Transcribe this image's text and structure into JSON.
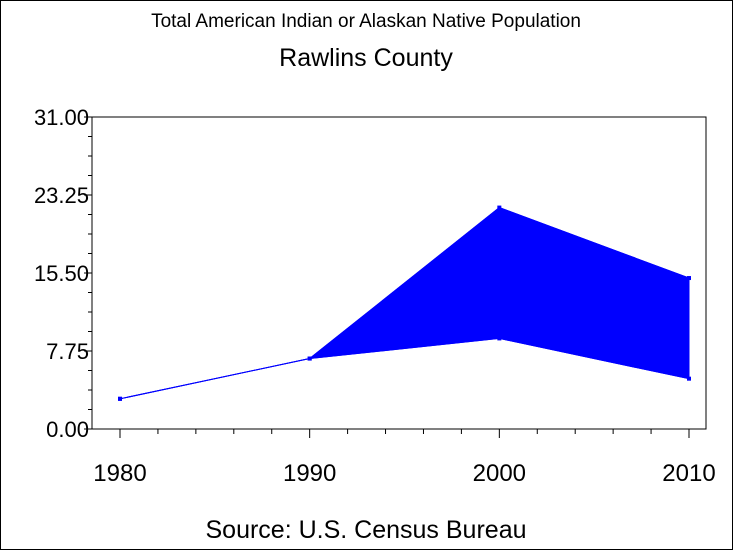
{
  "chart_data": {
    "type": "area",
    "title": "Total American Indian or Alaskan Native Population",
    "subtitle": "Rawlins County",
    "footnote": "Source: U.S. Census Bureau",
    "xlabel": "",
    "ylabel": "",
    "x": [
      1980,
      1990,
      2000,
      2010
    ],
    "x_tick_labels": [
      "1980",
      "1990",
      "2000",
      "2010"
    ],
    "y_tick_labels": [
      "0.00",
      "7.75",
      "15.50",
      "23.25",
      "31.00"
    ],
    "ylim": [
      0,
      31
    ],
    "xlim": [
      1980,
      2010
    ],
    "grid": false,
    "series": [
      {
        "values": [
          3.0,
          7.0,
          22.0,
          15.0
        ]
      },
      {
        "values": [
          3.0,
          7.0,
          9.0,
          5.0
        ]
      }
    ],
    "band_color": "#0000ff",
    "line_color": "#0000ff"
  }
}
